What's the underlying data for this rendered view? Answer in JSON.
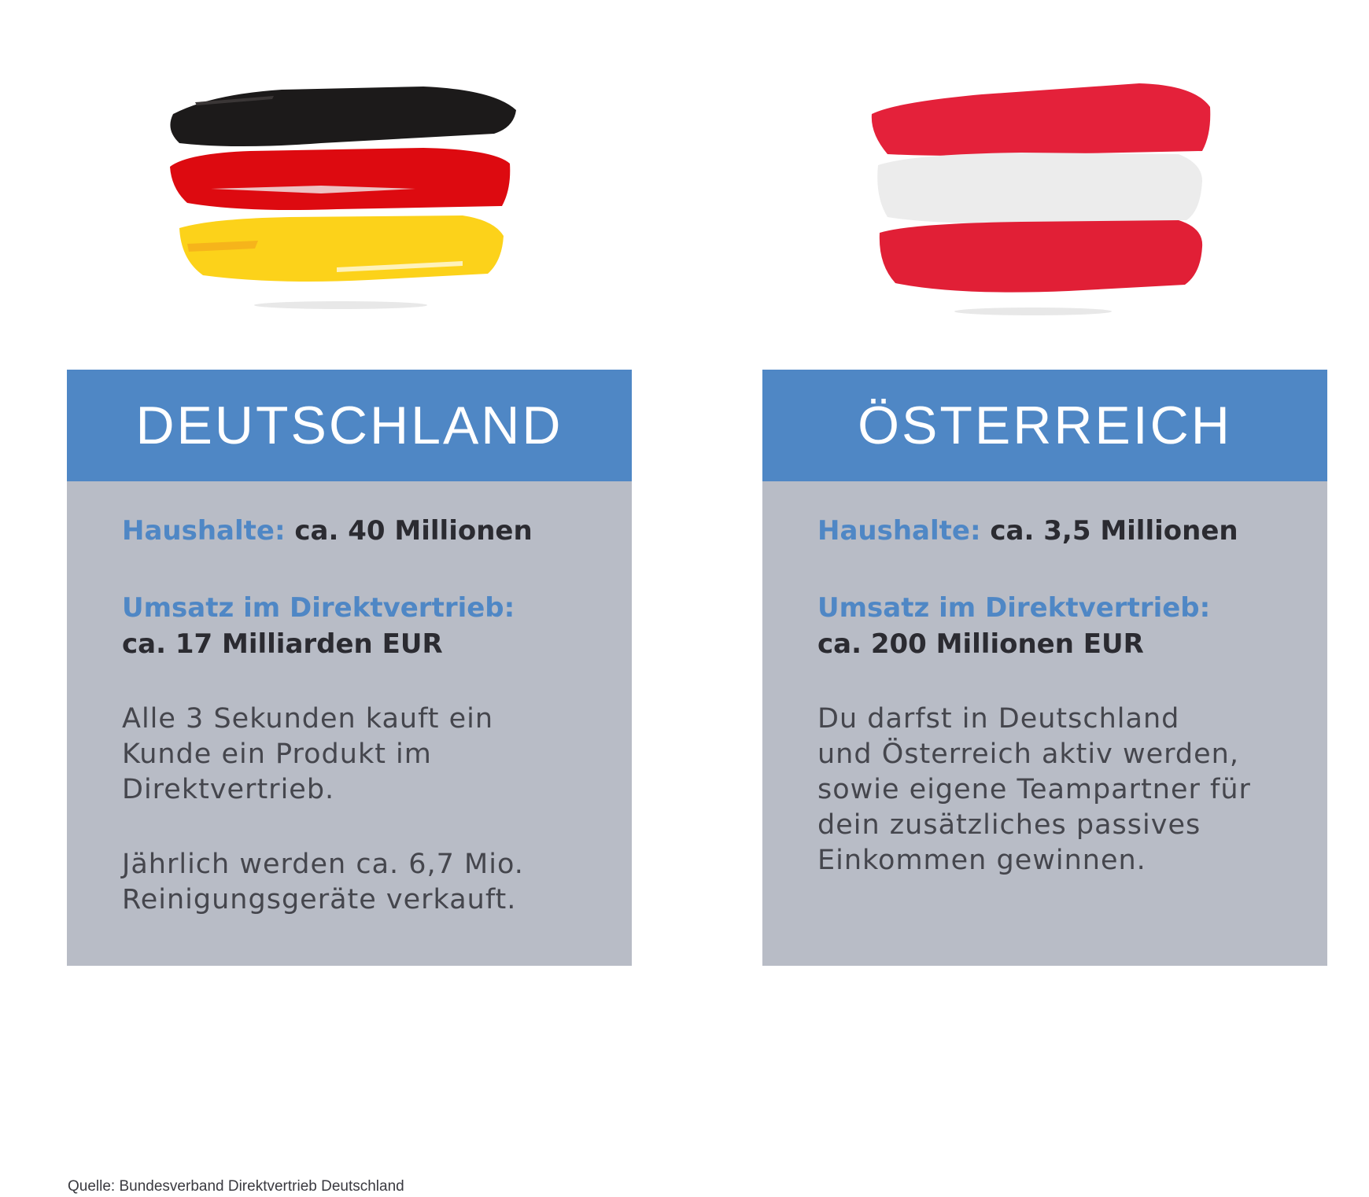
{
  "colors": {
    "header_blue": "#4f87c5",
    "card_gray": "#b8bcc6",
    "de_black": "#1a1a1a",
    "de_red": "#dd0000",
    "de_gold": "#ffcc00",
    "at_red": "#e11f36",
    "at_white": "#eeeeee"
  },
  "cards": {
    "de": {
      "title": "DEUTSCHLAND",
      "households_label": "Haushalte:",
      "households_value": " ca. 40 Millionen",
      "revenue_label": "Umsatz im Direktvertrieb:",
      "revenue_value": "ca. 17 Milliarden EUR",
      "paragraph_1": "Alle 3 Sekunden kauft ein\nKunde ein Produkt im\nDirektvertrieb.",
      "paragraph_2": "Jährlich werden ca. 6,7 Mio.\nReinigungsgeräte verkauft."
    },
    "at": {
      "title": "ÖSTERREICH",
      "households_label": "Haushalte:",
      "households_value": " ca. 3,5 Millionen",
      "revenue_label": "Umsatz im Direktvertrieb:",
      "revenue_value": "ca. 200 Millionen EUR",
      "paragraph_1": "Du darfst in Deutschland\nund Österreich aktiv werden,\nsowie eigene Teampartner für\ndein zusätzliches passives\nEinkommen gewinnen."
    }
  },
  "footer": {
    "source": "Quelle: Bundesverband Direktvertrieb Deutschland"
  }
}
